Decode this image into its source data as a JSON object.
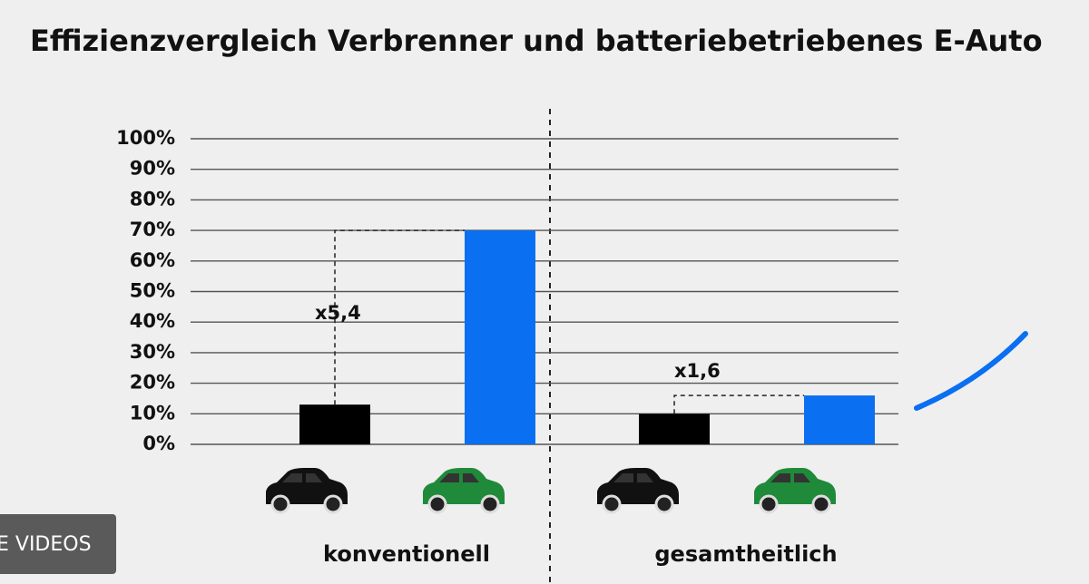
{
  "chart_data": {
    "type": "bar",
    "title": "Effizienzvergleich Verbrenner und batteriebetriebenes E-Auto",
    "categories": [
      "konventionell",
      "gesamtheitlich"
    ],
    "series": [
      {
        "color": "#000000",
        "values": [
          13,
          10
        ]
      },
      {
        "color": "#0a6ff0",
        "values": [
          70,
          16
        ]
      }
    ],
    "annotations": [
      "x5,4",
      "x1,6"
    ],
    "ylim": [
      0,
      100
    ],
    "yticks": [
      {
        "value": 0,
        "label": "0%"
      },
      {
        "value": 10,
        "label": "10%"
      },
      {
        "value": 20,
        "label": "20%"
      },
      {
        "value": 30,
        "label": "30%"
      },
      {
        "value": 40,
        "label": "40%"
      },
      {
        "value": 50,
        "label": "50%"
      },
      {
        "value": 60,
        "label": "60%"
      },
      {
        "value": 70,
        "label": "70%"
      },
      {
        "value": 80,
        "label": "80%"
      },
      {
        "value": 90,
        "label": "90%"
      },
      {
        "value": 100,
        "label": "100%"
      }
    ],
    "grid": true
  },
  "overlay": {
    "button": "E VIDEOS"
  }
}
